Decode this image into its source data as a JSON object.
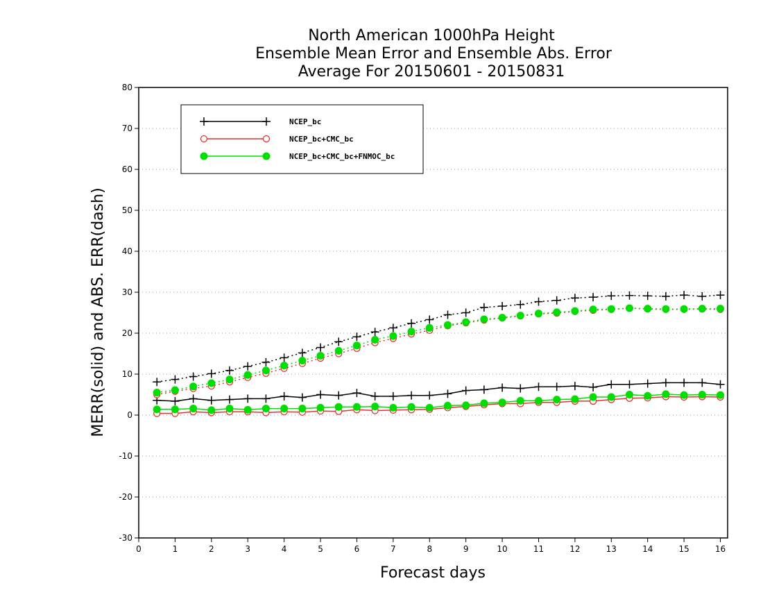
{
  "chart_data": {
    "type": "line",
    "title_lines": [
      "North American 1000hPa Height",
      "Ensemble Mean Error and Ensemble Abs. Error",
      "Average For 20150601 - 20150831"
    ],
    "xlabel": "Forecast days",
    "ylabel": "MERR(solid) and ABS. ERR(dash)",
    "xlim": [
      0,
      16.2
    ],
    "ylim": [
      -30,
      80
    ],
    "xticks": [
      0,
      1,
      2,
      3,
      4,
      5,
      6,
      7,
      8,
      9,
      10,
      11,
      12,
      13,
      14,
      15,
      16
    ],
    "yticks": [
      -30,
      -20,
      -10,
      0,
      10,
      20,
      30,
      40,
      50,
      60,
      70,
      80
    ],
    "grid": "horizontal dotted",
    "legend_position": "top-left",
    "x": [
      0.5,
      1,
      1.5,
      2,
      2.5,
      3,
      3.5,
      4,
      4.5,
      5,
      5.5,
      6,
      6.5,
      7,
      7.5,
      8,
      8.5,
      9,
      9.5,
      10,
      10.5,
      11,
      11.5,
      12,
      12.5,
      13,
      13.5,
      14,
      14.5,
      15,
      15.5,
      16
    ],
    "series": [
      {
        "name": "NCEP_bc",
        "color": "#000000",
        "marker": "plus",
        "merr": [
          3.6,
          3.4,
          4.0,
          3.6,
          3.8,
          4.0,
          4.0,
          4.6,
          4.3,
          5.0,
          4.8,
          5.4,
          4.6,
          4.6,
          4.8,
          4.8,
          5.2,
          6.0,
          6.2,
          6.7,
          6.5,
          6.9,
          6.9,
          7.1,
          6.8,
          7.5,
          7.5,
          7.7,
          7.9,
          7.9,
          7.9,
          7.5
        ],
        "abs_err": [
          8.1,
          8.7,
          9.4,
          10.1,
          10.9,
          11.9,
          12.9,
          14.0,
          15.2,
          16.5,
          17.9,
          19.1,
          20.3,
          21.3,
          22.4,
          23.3,
          24.5,
          25.0,
          26.3,
          26.6,
          27.0,
          27.7,
          28.0,
          28.6,
          28.8,
          29.1,
          29.2,
          29.1,
          29.0,
          29.3,
          29.0,
          29.3
        ]
      },
      {
        "name": "NCEP_bc+CMC_bc",
        "color": "#e83030",
        "marker": "open-circle",
        "merr": [
          0.4,
          0.4,
          0.8,
          0.6,
          0.8,
          0.8,
          0.6,
          0.8,
          0.7,
          1.0,
          0.9,
          1.3,
          1.1,
          1.2,
          1.3,
          1.4,
          1.8,
          2.1,
          2.5,
          2.8,
          2.8,
          3.1,
          3.1,
          3.4,
          3.4,
          3.8,
          4.1,
          4.2,
          4.5,
          4.4,
          4.5,
          4.4
        ],
        "abs_err": [
          5.0,
          5.8,
          6.5,
          7.1,
          8.1,
          9.2,
          10.2,
          11.4,
          12.6,
          13.9,
          15.0,
          16.3,
          17.7,
          18.7,
          19.8,
          20.7,
          21.8,
          22.5,
          23.2,
          23.7,
          24.2,
          24.7,
          24.9,
          25.3,
          25.6,
          25.8,
          26.1,
          25.9,
          25.8,
          25.8,
          25.9,
          25.8
        ]
      },
      {
        "name": "NCEP_bc+CMC_bc+FNMOC_bc",
        "color": "#00dd00",
        "marker": "filled-circle",
        "merr": [
          1.4,
          1.4,
          1.6,
          1.2,
          1.6,
          1.3,
          1.6,
          1.6,
          1.6,
          1.8,
          2.0,
          2.0,
          2.1,
          1.8,
          2.0,
          1.8,
          2.3,
          2.4,
          2.9,
          3.1,
          3.5,
          3.5,
          3.8,
          3.9,
          4.4,
          4.4,
          5.0,
          4.7,
          5.1,
          4.9,
          5.0,
          4.9
        ],
        "abs_err": [
          5.5,
          6.1,
          7.0,
          7.8,
          8.7,
          9.8,
          10.9,
          12.1,
          13.3,
          14.5,
          15.7,
          17.0,
          18.4,
          19.3,
          20.4,
          21.3,
          22.0,
          22.7,
          23.4,
          23.8,
          24.3,
          24.8,
          25.1,
          25.4,
          25.8,
          25.9,
          26.1,
          26.0,
          25.9,
          25.9,
          26.0,
          26.0
        ]
      }
    ]
  }
}
